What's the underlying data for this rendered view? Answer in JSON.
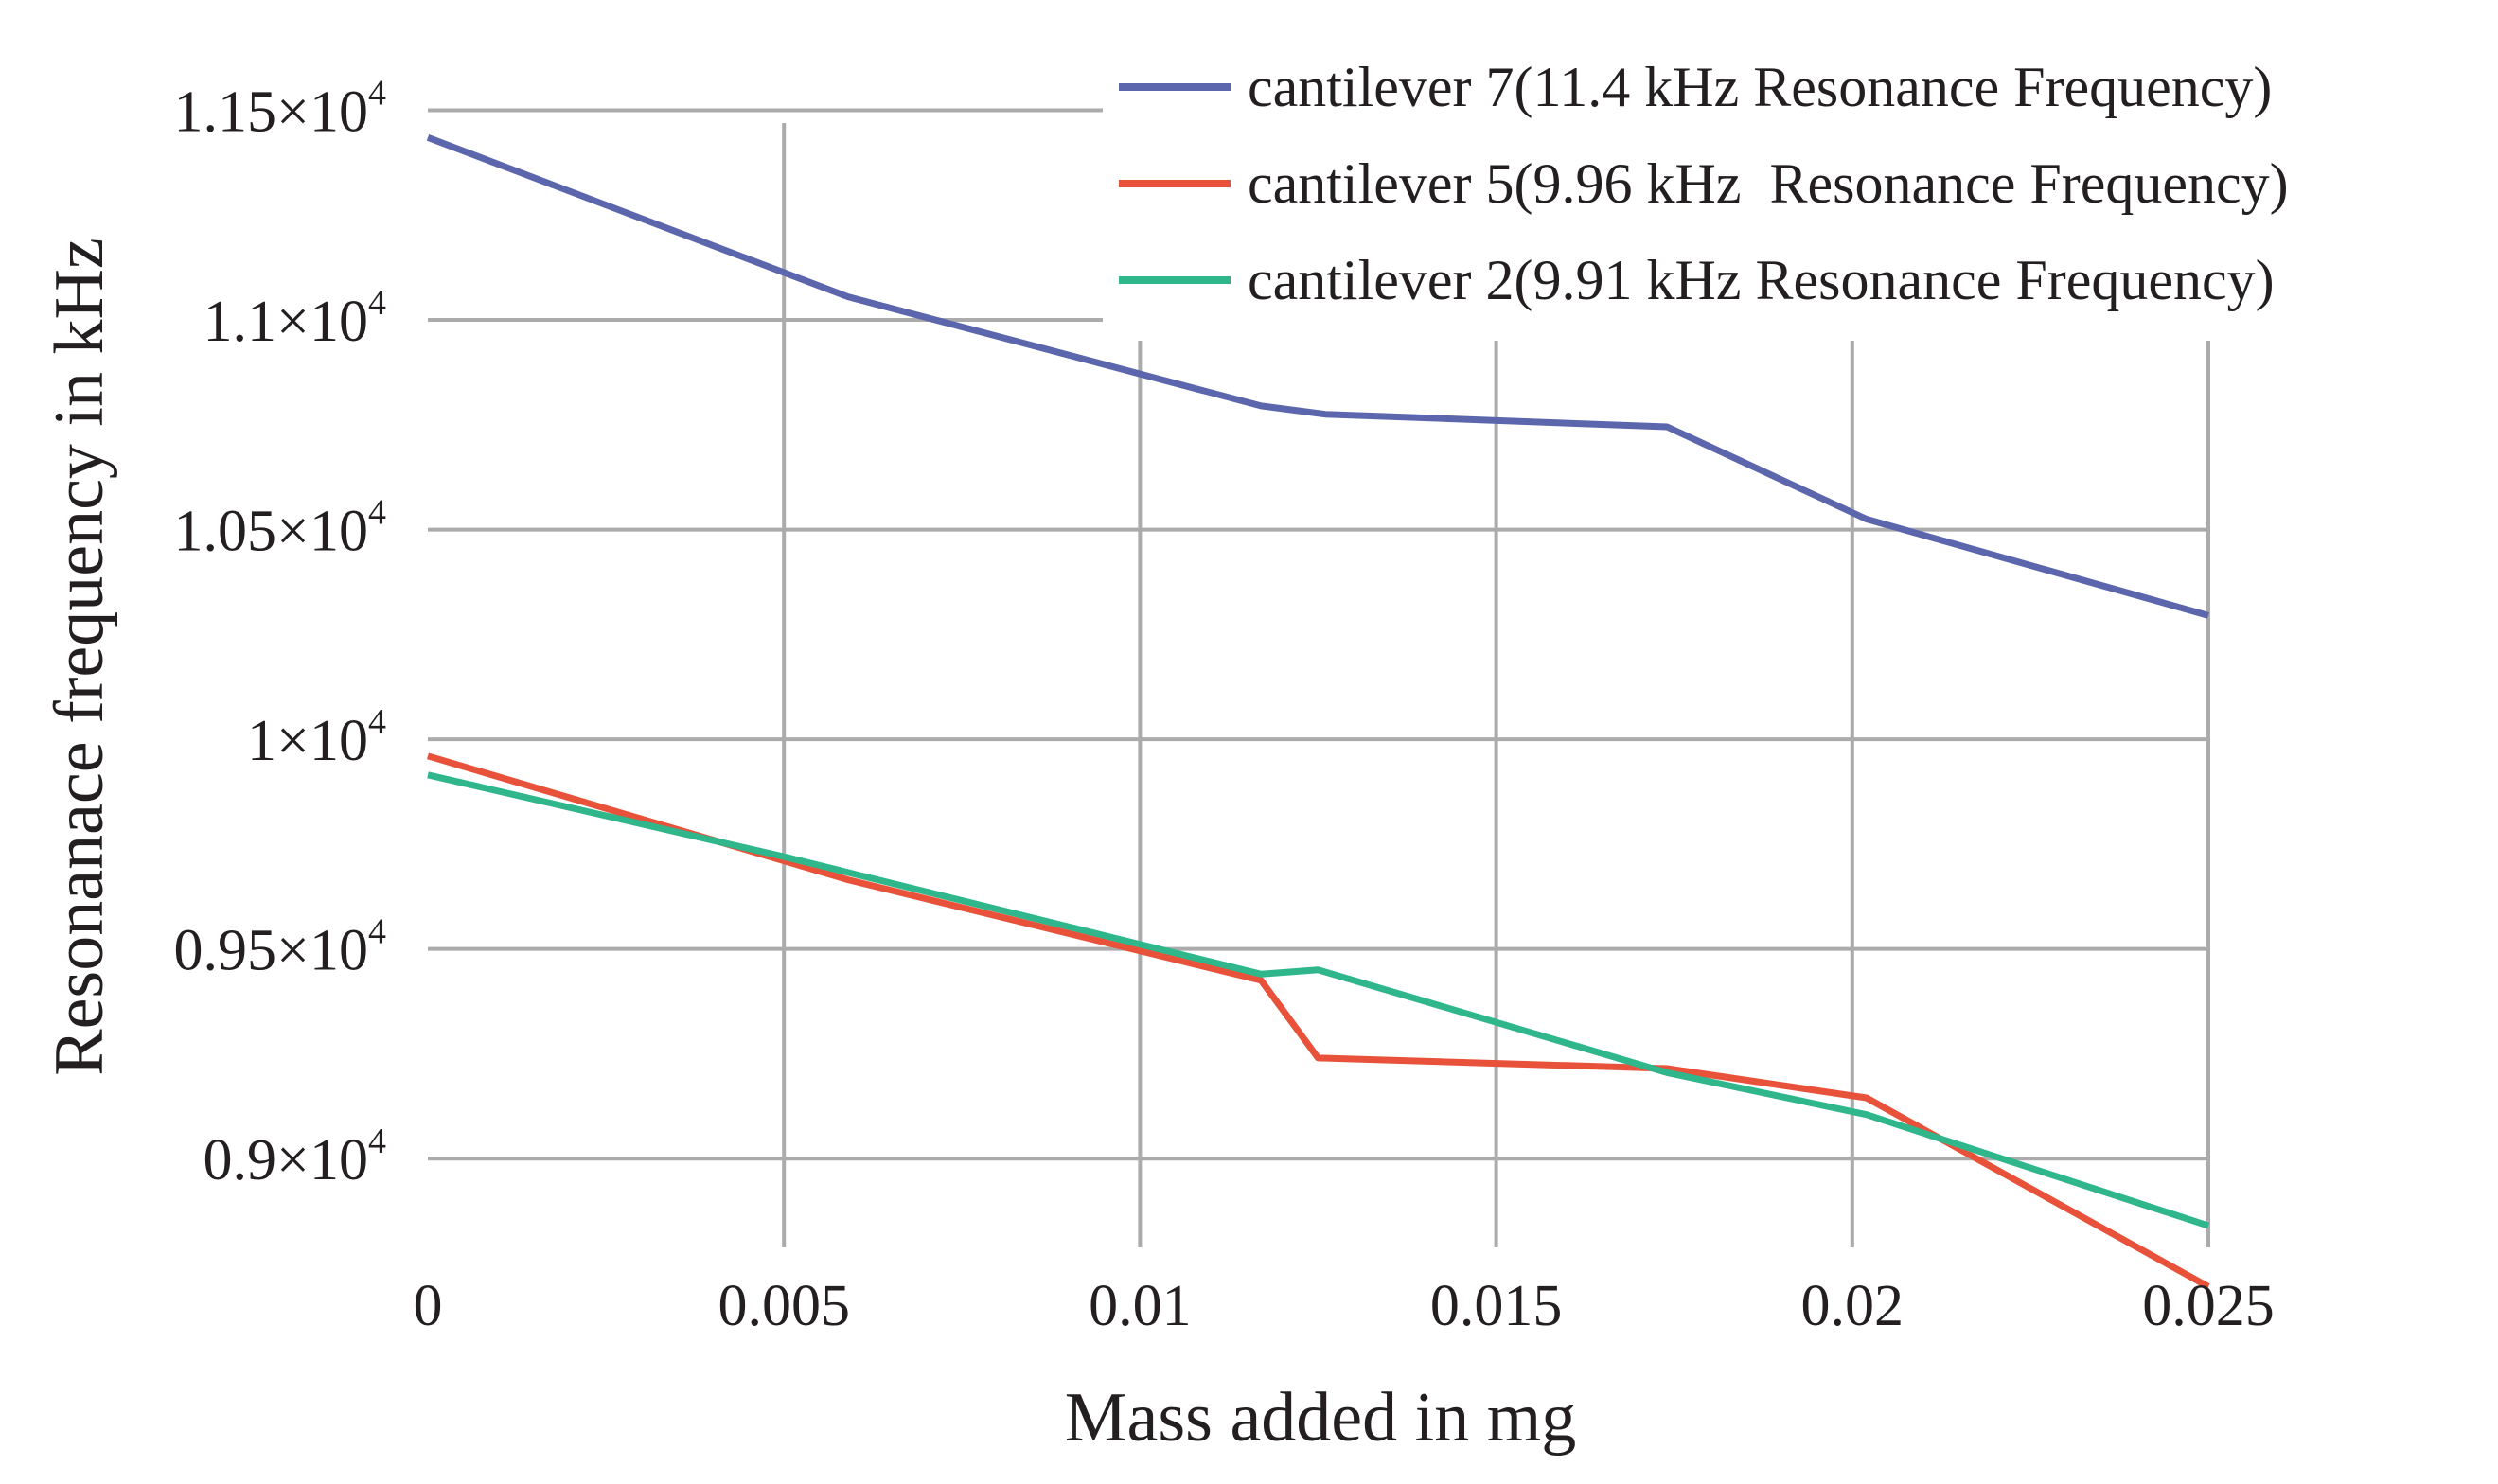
{
  "chart_data": {
    "type": "line",
    "title": "",
    "xlabel": "Mass added in mg",
    "ylabel": "Resonanace frequency in kHz",
    "xlim": [
      0,
      0.025
    ],
    "ylim": [
      8750,
      11650
    ],
    "grid": true,
    "legend_position": "top-right",
    "x_ticks": [
      {
        "value": 0,
        "label": "0"
      },
      {
        "value": 0.005,
        "label": "0.005"
      },
      {
        "value": 0.01,
        "label": "0.01"
      },
      {
        "value": 0.015,
        "label": "0.015"
      },
      {
        "value": 0.02,
        "label": "0.02"
      },
      {
        "value": 0.025,
        "label": "0.025"
      }
    ],
    "y_ticks": [
      {
        "value": 9000,
        "mantissa": "0.9×10",
        "exp": "4"
      },
      {
        "value": 9500,
        "mantissa": "0.95×10",
        "exp": "4"
      },
      {
        "value": 10000,
        "mantissa": "1×10",
        "exp": "4"
      },
      {
        "value": 10500,
        "mantissa": "1.05×10",
        "exp": "4"
      },
      {
        "value": 11000,
        "mantissa": "1.1×10",
        "exp": "4"
      },
      {
        "value": 11500,
        "mantissa": "1.15×10",
        "exp": "4"
      }
    ],
    "series": [
      {
        "name": "cantilever 7(11.4 kHz Resonance Frequency)",
        "color": "#5b66ad",
        "points": [
          [
            0,
            11435
          ],
          [
            0.0059,
            11055
          ],
          [
            0.0117,
            10795
          ],
          [
            0.0126,
            10775
          ],
          [
            0.0174,
            10745
          ],
          [
            0.0202,
            10525
          ],
          [
            0.025,
            10295
          ]
        ]
      },
      {
        "name": "cantilever 5(9.96 kHz  Resonance Frequency)",
        "color": "#e8523a",
        "points": [
          [
            0,
            9960
          ],
          [
            0.0059,
            9665
          ],
          [
            0.0117,
            9425
          ],
          [
            0.0125,
            9240
          ],
          [
            0.0174,
            9215
          ],
          [
            0.0202,
            9145
          ],
          [
            0.025,
            8695
          ]
        ]
      },
      {
        "name": "cantilever 2(9.91 kHz Resonance Frequency)",
        "color": "#2fb68b",
        "points": [
          [
            0,
            9915
          ],
          [
            0.005,
            9720
          ],
          [
            0.0117,
            9440
          ],
          [
            0.0125,
            9450
          ],
          [
            0.0174,
            9205
          ],
          [
            0.0202,
            9105
          ],
          [
            0.025,
            8840
          ]
        ]
      }
    ]
  }
}
